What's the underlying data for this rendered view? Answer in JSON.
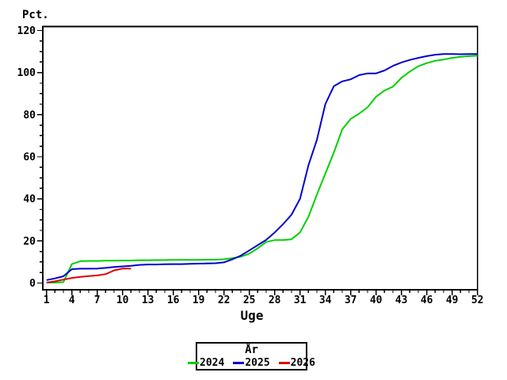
{
  "chart_data": {
    "type": "line",
    "ylabel": "Pct.",
    "xlabel": "Uge",
    "ylim": [
      0,
      120
    ],
    "xlim": [
      1,
      52
    ],
    "y_major_ticks": [
      0,
      20,
      40,
      60,
      80,
      100,
      120
    ],
    "y_minor_step": 5,
    "x_major_ticks": [
      1,
      4,
      7,
      10,
      13,
      16,
      19,
      22,
      25,
      28,
      31,
      34,
      37,
      40,
      43,
      46,
      49,
      52
    ],
    "x_minor_step": 1,
    "grid": "off",
    "frame": "box",
    "legend": {
      "title": "År",
      "position": "bottom-center",
      "entries": [
        {
          "label": "2024",
          "color": "#00d000"
        },
        {
          "label": "2025",
          "color": "#0000d0"
        },
        {
          "label": "2026",
          "color": "#e00000"
        }
      ]
    },
    "series": [
      {
        "name": "2024",
        "color": "#00d000",
        "x": [
          1,
          2,
          3,
          4,
          5,
          6,
          7,
          8,
          9,
          10,
          11,
          12,
          13,
          14,
          15,
          16,
          17,
          18,
          19,
          20,
          21,
          22,
          23,
          24,
          25,
          26,
          27,
          28,
          29,
          30,
          31,
          32,
          33,
          34,
          35,
          36,
          37,
          38,
          39,
          40,
          41,
          42,
          43,
          44,
          45,
          46,
          47,
          48,
          49,
          50,
          51,
          52
        ],
        "y": [
          0.2,
          0.2,
          0.4,
          9,
          10.4,
          10.5,
          10.5,
          10.6,
          10.6,
          10.7,
          10.7,
          10.8,
          10.8,
          10.9,
          10.9,
          11,
          11,
          11,
          11,
          11.1,
          11.1,
          11.3,
          11.8,
          12.5,
          14,
          16.5,
          19.5,
          20.4,
          20.4,
          20.8,
          24,
          31.5,
          42,
          52,
          62,
          73,
          78,
          80.5,
          83.5,
          88.5,
          91.5,
          93.3,
          97.5,
          100.5,
          103,
          104.5,
          105.6,
          106.2,
          107,
          107.5,
          107.8,
          108
        ]
      },
      {
        "name": "2025",
        "color": "#0000d0",
        "x": [
          1,
          2,
          3,
          4,
          5,
          6,
          7,
          8,
          9,
          10,
          11,
          12,
          13,
          14,
          15,
          16,
          17,
          18,
          19,
          20,
          21,
          22,
          23,
          24,
          25,
          26,
          27,
          28,
          29,
          30,
          31,
          32,
          33,
          34,
          35,
          36,
          37,
          38,
          39,
          40,
          41,
          42,
          43,
          44,
          45,
          46,
          47,
          48,
          49,
          50,
          51,
          52
        ],
        "y": [
          1.4,
          2.2,
          3.2,
          6.6,
          6.8,
          6.8,
          6.9,
          7.2,
          7.6,
          7.9,
          8.2,
          8.6,
          8.8,
          8.8,
          8.9,
          9,
          9,
          9.1,
          9.2,
          9.3,
          9.4,
          9.8,
          11.3,
          13,
          15.5,
          18,
          20.5,
          24,
          28,
          32.5,
          40,
          56,
          68,
          85,
          93.5,
          95.8,
          96.8,
          98.8,
          99.6,
          99.6,
          101,
          103.2,
          104.8,
          106,
          107,
          107.8,
          108.5,
          108.8,
          108.8,
          108.7,
          108.8,
          108.8
        ]
      },
      {
        "name": "2026",
        "color": "#e00000",
        "x": [
          1,
          2,
          3,
          4,
          5,
          6,
          7,
          8,
          9,
          10,
          11
        ],
        "y": [
          0.2,
          0.8,
          1.6,
          2.4,
          2.9,
          3.3,
          3.6,
          4.2,
          6,
          6.9,
          6.9
        ]
      }
    ]
  }
}
